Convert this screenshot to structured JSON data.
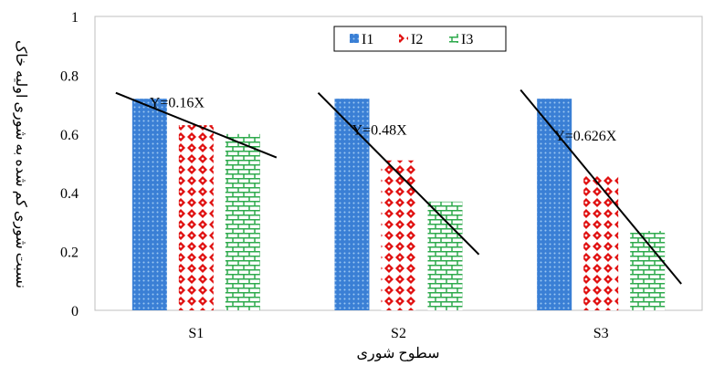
{
  "chart_data": {
    "type": "bar",
    "title": "",
    "xlabel": "سطوح شوری",
    "ylabel": "نسبت شوری کم شده به شوری اولیه خاک",
    "categories": [
      "S1",
      "S2",
      "S3"
    ],
    "ylim": [
      0,
      1
    ],
    "yticks": [
      "0",
      "0.2",
      "0.4",
      "0.6",
      "0.8",
      "1"
    ],
    "legend_position": "top-center",
    "series": [
      {
        "name": "I1",
        "values": [
          0.72,
          0.72,
          0.72
        ],
        "color": "#3a7fd5",
        "pattern": "dots"
      },
      {
        "name": "I2",
        "values": [
          0.63,
          0.51,
          0.46
        ],
        "color": "#e01010",
        "pattern": "diamond-dots"
      },
      {
        "name": "I3",
        "values": [
          0.6,
          0.37,
          0.27
        ],
        "color": "#2eaa4c",
        "pattern": "brick"
      }
    ],
    "trendlines": [
      {
        "category": "S1",
        "label": "Y=0.16X",
        "y_start": 0.74,
        "y_end": 0.52
      },
      {
        "category": "S2",
        "label": "Y=0.48X",
        "y_start": 0.74,
        "y_end": 0.19
      },
      {
        "category": "S3",
        "label": "Y=0.626X",
        "y_start": 0.75,
        "y_end": 0.09
      }
    ]
  }
}
